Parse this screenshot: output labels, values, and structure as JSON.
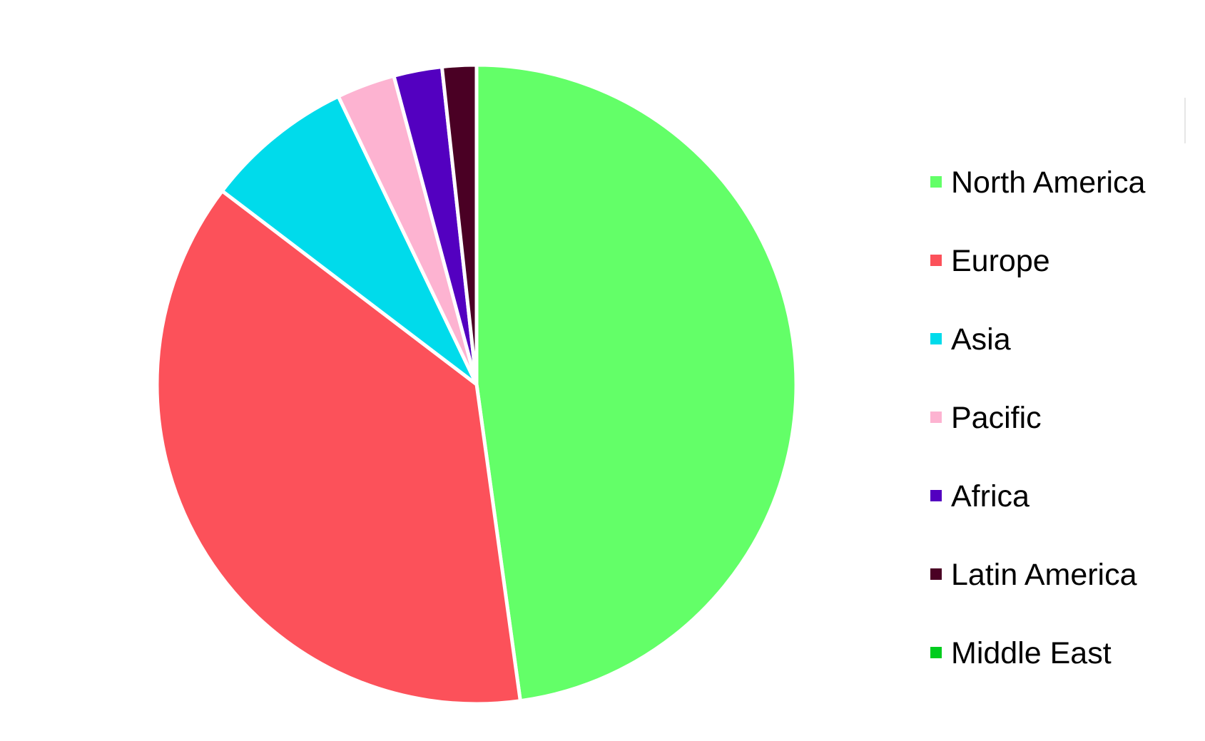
{
  "chart_data": {
    "type": "pie",
    "title": "",
    "start": "top",
    "direction": "clockwise",
    "legend_position": "right",
    "slices": [
      {
        "label": "North America",
        "value": 47.0,
        "color": "#63FF68"
      },
      {
        "label": "Europe",
        "value": 36.9,
        "color": "#FC515A"
      },
      {
        "label": "Asia",
        "value": 7.4,
        "color": "#00DBEB"
      },
      {
        "label": "Pacific",
        "value": 2.9,
        "color": "#FDB3D1"
      },
      {
        "label": "Africa",
        "value": 2.4,
        "color": "#5300C0"
      },
      {
        "label": "Latin America",
        "value": 1.7,
        "color": "#4A0024"
      },
      {
        "label": "Middle East",
        "value": 0.0,
        "color": "#00CC1E"
      }
    ]
  }
}
